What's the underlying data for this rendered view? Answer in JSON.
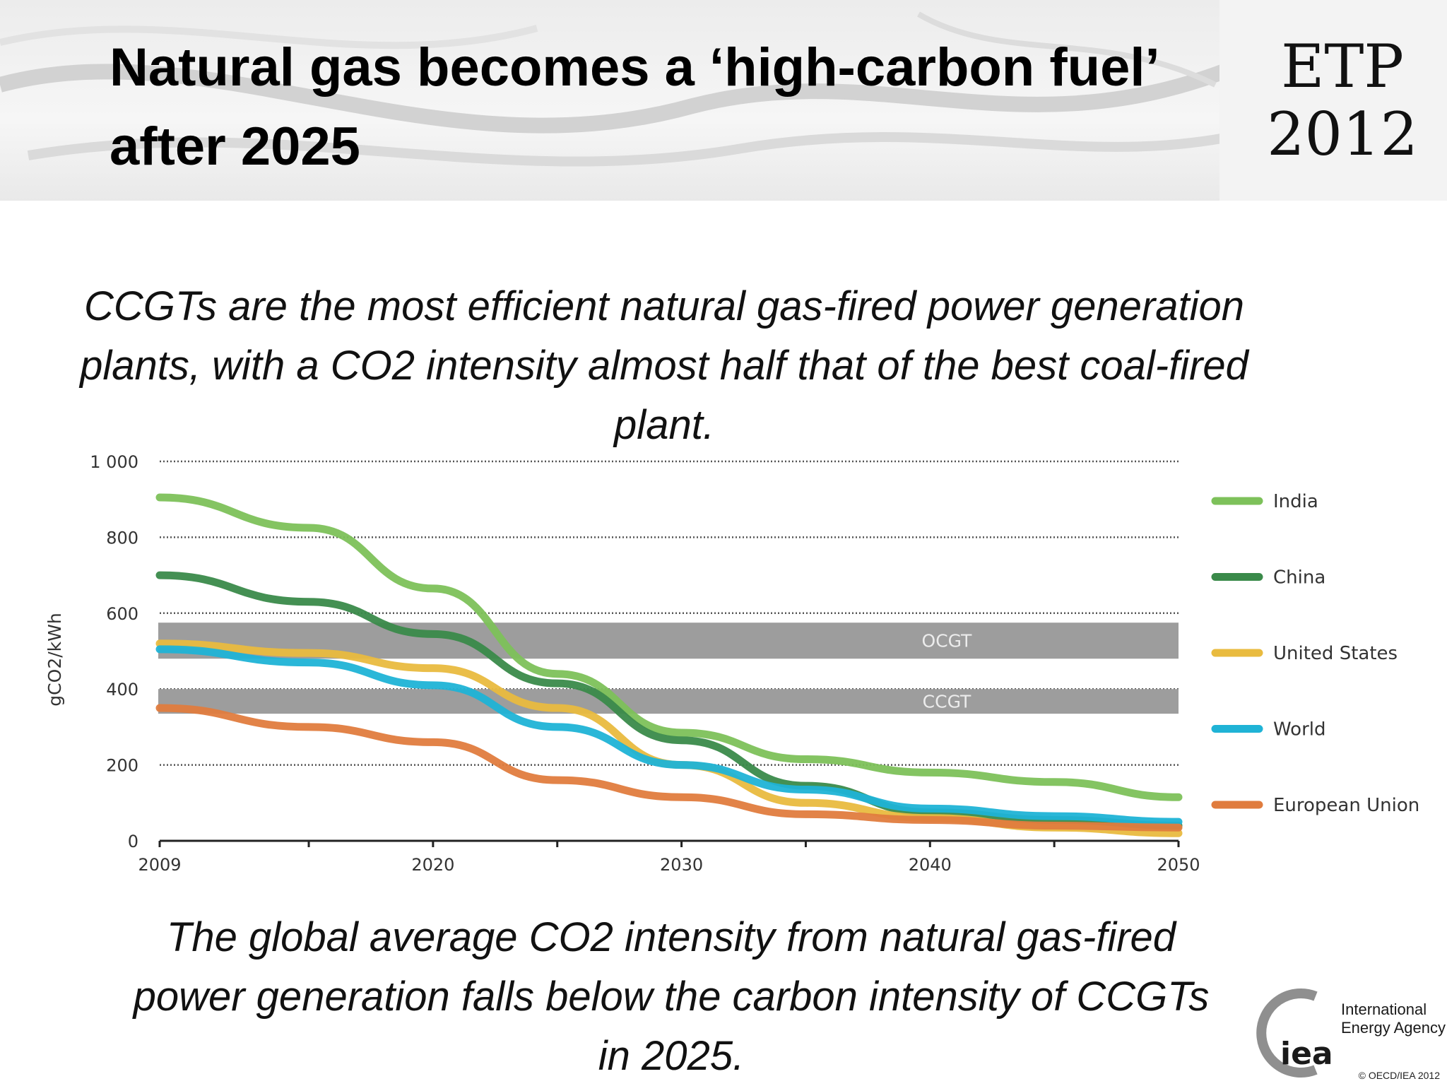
{
  "slide": {
    "title": "Natural gas becomes a ‘high-carbon fuel’ after 2025",
    "logo_line1": "ETP",
    "logo_line2": "2012",
    "caption_top": "CCGTs are the most efficient natural gas-fired power generation plants, with a CO2 intensity almost half that of the best coal-fired plant.",
    "caption_bottom": "The global average CO2 intensity from natural gas-fired power generation falls below the carbon intensity of CCGTs in 2025.",
    "agency_logo_text": "iea",
    "agency_name_line1": "International",
    "agency_name_line2": "Energy Agency",
    "copyright": "© OECD/IEA 2012"
  },
  "chart_data": {
    "type": "line",
    "title": "",
    "ylabel": "gCO2/kWh",
    "xlabel": "",
    "xlim": [
      2009,
      2050
    ],
    "ylim": [
      0,
      1000
    ],
    "x_ticks": [
      2009,
      2020,
      2030,
      2040,
      2050
    ],
    "x_tick_labels": [
      "2009",
      "2020",
      "2030",
      "2040",
      "2050"
    ],
    "y_ticks": [
      0,
      200,
      400,
      600,
      800,
      1000
    ],
    "y_tick_labels": [
      "0",
      "200",
      "400",
      "600",
      "800",
      "1 000"
    ],
    "grid": "dotted horizontal",
    "legend_position": "right",
    "bands": [
      {
        "label": "OCGT",
        "y_from": 480,
        "y_to": 575,
        "color": "#9d9d9d"
      },
      {
        "label": "CCGT",
        "y_from": 335,
        "y_to": 400,
        "color": "#9d9d9d"
      }
    ],
    "series": [
      {
        "name": "India",
        "color": "#7dc15a",
        "x": [
          2009,
          2015,
          2020,
          2025,
          2030,
          2035,
          2040,
          2045,
          2050
        ],
        "values": [
          905,
          825,
          665,
          440,
          285,
          215,
          180,
          155,
          115
        ]
      },
      {
        "name": "China",
        "color": "#3a8a4a",
        "x": [
          2009,
          2015,
          2020,
          2025,
          2030,
          2035,
          2040,
          2045,
          2050
        ],
        "values": [
          700,
          630,
          545,
          415,
          265,
          145,
          75,
          55,
          40
        ]
      },
      {
        "name": "United States",
        "color": "#e9bb3f",
        "x": [
          2009,
          2015,
          2020,
          2025,
          2030,
          2035,
          2040,
          2045,
          2050
        ],
        "values": [
          520,
          495,
          455,
          350,
          200,
          100,
          60,
          35,
          20
        ]
      },
      {
        "name": "World",
        "color": "#1fb3d6",
        "x": [
          2009,
          2015,
          2020,
          2025,
          2030,
          2035,
          2040,
          2045,
          2050
        ],
        "values": [
          505,
          470,
          410,
          300,
          200,
          135,
          85,
          65,
          50
        ]
      },
      {
        "name": "European Union",
        "color": "#e07c3e",
        "x": [
          2009,
          2015,
          2020,
          2025,
          2030,
          2035,
          2040,
          2045,
          2050
        ],
        "values": [
          350,
          300,
          260,
          160,
          115,
          70,
          55,
          40,
          35
        ]
      }
    ]
  }
}
